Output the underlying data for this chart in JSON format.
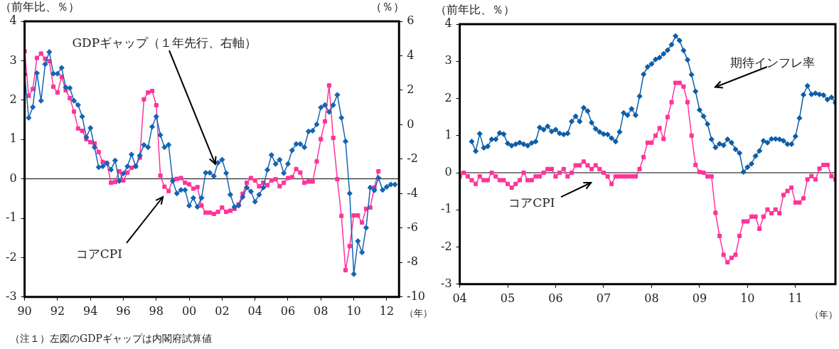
{
  "chart_data": [
    {
      "type": "line",
      "ylabel": "（前年比、％）",
      "y2label": "（％）",
      "xlabel": "（年）",
      "annotations": [
        "（注１）左図のGDPギャップは内閣府試算値"
      ],
      "x": [
        1990,
        1990.25,
        1990.5,
        1990.75,
        1991,
        1991.25,
        1991.5,
        1991.75,
        1992,
        1992.25,
        1992.5,
        1992.75,
        1993,
        1993.25,
        1993.5,
        1993.75,
        1994,
        1994.25,
        1994.5,
        1994.75,
        1995,
        1995.25,
        1995.5,
        1995.75,
        1996,
        1996.25,
        1996.5,
        1996.75,
        1997,
        1997.25,
        1997.5,
        1997.75,
        1998,
        1998.25,
        1998.5,
        1998.75,
        1999,
        1999.25,
        1999.5,
        1999.75,
        2000,
        2000.25,
        2000.5,
        2000.75,
        2001,
        2001.25,
        2001.5,
        2001.75,
        2002,
        2002.25,
        2002.5,
        2002.75,
        2003,
        2003.25,
        2003.5,
        2003.75,
        2004,
        2004.25,
        2004.5,
        2004.75,
        2005,
        2005.25,
        2005.5,
        2005.75,
        2006,
        2006.25,
        2006.5,
        2006.75,
        2007,
        2007.25,
        2007.5,
        2007.75,
        2008,
        2008.25,
        2008.5,
        2008.75,
        2009,
        2009.25,
        2009.5,
        2009.75,
        2010,
        2010.25,
        2010.5,
        2010.75,
        2011,
        2011.25,
        2011.5,
        2011.75,
        2012,
        2012.25,
        2012.5
      ],
      "series": [
        {
          "name": "コアCPI",
          "color": "#ff3399",
          "marker": "square",
          "values": [
            3.24,
            2.11,
            2.28,
            3.07,
            3.18,
            3.05,
            2.99,
            2.34,
            2.19,
            2.59,
            2.25,
            2.05,
            1.71,
            1.28,
            1.22,
            1.01,
            0.93,
            0.9,
            0.68,
            0.43,
            0.4,
            -0.1,
            -0.08,
            0.19,
            -0.04,
            0.16,
            0.28,
            0.32,
            0.54,
            2.02,
            2.19,
            2.23,
            1.87,
            0.08,
            -0.2,
            -0.31,
            -0.02,
            0.0,
            0.02,
            -0.1,
            -0.14,
            -0.25,
            -0.21,
            -0.68,
            -0.86,
            -0.86,
            -0.89,
            -0.84,
            -0.73,
            -0.84,
            -0.81,
            -0.76,
            -0.65,
            -0.38,
            -0.1,
            0.02,
            -0.04,
            -0.19,
            -0.1,
            -0.16,
            -0.04,
            -0.01,
            -0.19,
            -0.1,
            0.02,
            0.04,
            0.25,
            0.16,
            -0.1,
            -0.07,
            -0.07,
            0.44,
            1.01,
            1.46,
            2.37,
            1.04,
            -0.01,
            -0.94,
            -2.32,
            -1.71,
            -0.93,
            -0.93,
            -1.11,
            -0.76,
            -0.73,
            -0.22,
            0.19,
            null,
            null,
            null,
            null
          ]
        },
        {
          "name": "GDPギャップ（１年先行、右軸）",
          "color": "#1464b4",
          "marker": "diamond",
          "axis": "y2",
          "values": [
            2.92,
            0.4,
            1.02,
            2.99,
            1.39,
            3.51,
            4.22,
            2.96,
            2.96,
            3.3,
            2.17,
            2.13,
            1.39,
            1.14,
            0.47,
            -0.73,
            -0.19,
            -1.31,
            -2.47,
            -2.42,
            -2.24,
            -2.61,
            -2.08,
            -3.27,
            -2.83,
            -2.42,
            -1.73,
            -2.42,
            -1.79,
            -1.17,
            -1.31,
            -0.12,
            0.47,
            -0.6,
            -1.31,
            -1.17,
            -3.27,
            -3.99,
            -3.79,
            -3.79,
            -4.7,
            -4.25,
            -4.77,
            -4.25,
            -2.79,
            -2.79,
            -2.99,
            -2.21,
            -2.03,
            -2.81,
            -4.06,
            -4.77,
            -4.7,
            -4.2,
            -3.65,
            -3.88,
            -4.47,
            -4.06,
            -3.65,
            -2.62,
            -1.76,
            -2.28,
            -2.03,
            -2.81,
            -2.28,
            -1.49,
            -1.12,
            -1.12,
            -1.31,
            -0.39,
            -0.35,
            0.02,
            1.0,
            1.14,
            0.74,
            1.14,
            1.73,
            0.4,
            -0.97,
            -3.99,
            -8.67,
            -6.76,
            -7.41,
            -5.98,
            -3.65,
            -3.81,
            -3.09,
            -3.79,
            -3.61,
            -3.47,
            -3.47
          ]
        }
      ],
      "xlim": [
        1990,
        2012.75
      ],
      "xticks": [
        {
          "value": 1990,
          "label": "90"
        },
        {
          "value": 1992,
          "label": "92"
        },
        {
          "value": 1994,
          "label": "94"
        },
        {
          "value": 1996,
          "label": "96"
        },
        {
          "value": 1998,
          "label": "98"
        },
        {
          "value": 2000,
          "label": "00"
        },
        {
          "value": 2002,
          "label": "02"
        },
        {
          "value": 2004,
          "label": "04"
        },
        {
          "value": 2006,
          "label": "06"
        },
        {
          "value": 2008,
          "label": "08"
        },
        {
          "value": 2010,
          "label": "10"
        },
        {
          "value": 2012,
          "label": "12"
        }
      ],
      "ylim": [
        -3,
        4
      ],
      "yticks": [
        -3,
        -2,
        -1,
        0,
        1,
        2,
        3,
        4
      ],
      "y2lim": [
        -10,
        6
      ],
      "y2ticks": [
        -10,
        -8,
        -6,
        -4,
        -2,
        0,
        2,
        4,
        6
      ],
      "ref_lines": [
        {
          "axis": "y",
          "value": 0
        }
      ]
    },
    {
      "type": "line",
      "ylabel": "（前年比、％）",
      "xlabel": "（年）",
      "x": [
        "2004-01",
        "2004-02",
        "2004-03",
        "2004-04",
        "2004-05",
        "2004-06",
        "2004-07",
        "2004-08",
        "2004-09",
        "2004-10",
        "2004-11",
        "2004-12",
        "2005-01",
        "2005-02",
        "2005-03",
        "2005-04",
        "2005-05",
        "2005-06",
        "2005-07",
        "2005-08",
        "2005-09",
        "2005-10",
        "2005-11",
        "2005-12",
        "2006-01",
        "2006-02",
        "2006-03",
        "2006-04",
        "2006-05",
        "2006-06",
        "2006-07",
        "2006-08",
        "2006-09",
        "2006-10",
        "2006-11",
        "2006-12",
        "2007-01",
        "2007-02",
        "2007-03",
        "2007-04",
        "2007-05",
        "2007-06",
        "2007-07",
        "2007-08",
        "2007-09",
        "2007-10",
        "2007-11",
        "2007-12",
        "2008-01",
        "2008-02",
        "2008-03",
        "2008-04",
        "2008-05",
        "2008-06",
        "2008-07",
        "2008-08",
        "2008-09",
        "2008-10",
        "2008-11",
        "2008-12",
        "2009-01",
        "2009-02",
        "2009-03",
        "2009-04",
        "2009-05",
        "2009-06",
        "2009-07",
        "2009-08",
        "2009-09",
        "2009-10",
        "2009-11",
        "2009-12",
        "2010-01",
        "2010-02",
        "2010-03",
        "2010-04",
        "2010-05",
        "2010-06",
        "2010-07",
        "2010-08",
        "2010-09",
        "2010-10",
        "2010-11",
        "2010-12",
        "2011-01",
        "2011-02",
        "2011-03",
        "2011-04",
        "2011-05",
        "2011-06",
        "2011-07",
        "2011-08",
        "2011-09",
        "2011-10",
        "2011-11"
      ],
      "series": [
        {
          "name": "期待インフレ率",
          "color": "#0b5ea8",
          "marker": "diamond",
          "values": [
            null,
            null,
            null,
            0.84,
            0.58,
            1.05,
            0.67,
            0.71,
            0.9,
            0.9,
            1.07,
            1.04,
            0.79,
            0.73,
            0.77,
            0.81,
            0.77,
            0.73,
            0.8,
            0.84,
            1.22,
            1.16,
            1.25,
            1.11,
            1.16,
            1.06,
            1.03,
            1.06,
            1.38,
            1.52,
            1.38,
            1.75,
            1.66,
            1.35,
            1.18,
            1.1,
            1.04,
            1.03,
            0.93,
            0.84,
            1.1,
            1.61,
            1.55,
            1.72,
            1.55,
            2.06,
            2.65,
            2.85,
            2.93,
            3.05,
            3.1,
            3.2,
            3.3,
            3.45,
            3.68,
            3.56,
            3.29,
            3.04,
            2.64,
            2.19,
            1.69,
            1.52,
            1.31,
            0.9,
            0.68,
            0.78,
            0.74,
            0.9,
            0.81,
            0.63,
            0.53,
            0.02,
            0.15,
            0.24,
            0.45,
            0.59,
            0.86,
            0.81,
            0.91,
            0.91,
            0.9,
            0.86,
            0.77,
            0.77,
            0.98,
            1.47,
            2.1,
            2.34,
            2.11,
            2.14,
            2.11,
            2.09,
            1.97,
            2.03,
            1.88
          ]
        },
        {
          "name": "コアCPI",
          "color": "#ff3399",
          "marker": "square",
          "values": [
            -0.1,
            0,
            -0.1,
            -0.2,
            -0.3,
            -0.1,
            -0.2,
            -0.2,
            0,
            -0.1,
            -0.2,
            -0.2,
            -0.3,
            -0.4,
            -0.3,
            -0.2,
            0,
            -0.2,
            -0.2,
            -0.1,
            -0.1,
            0,
            0.1,
            0.1,
            -0.1,
            0,
            0.1,
            -0.1,
            0,
            0.2,
            0.2,
            0.3,
            0.2,
            0.1,
            0.2,
            0.1,
            0,
            -0.1,
            -0.3,
            -0.1,
            -0.1,
            -0.1,
            -0.1,
            -0.1,
            -0.1,
            0.1,
            0.42,
            0.81,
            0.81,
            1.0,
            1.2,
            0.91,
            1.5,
            1.9,
            2.42,
            2.42,
            2.32,
            1.9,
            1.0,
            0.21,
            0.02,
            0.0,
            -0.1,
            -0.1,
            -1.08,
            -1.7,
            -2.21,
            -2.41,
            -2.29,
            -2.21,
            -1.7,
            -1.31,
            -1.31,
            -1.18,
            -1.18,
            -1.51,
            -1.18,
            -0.99,
            -1.09,
            -0.99,
            -1.09,
            -0.6,
            -0.49,
            -0.4,
            -0.8,
            -0.8,
            -0.69,
            -0.18,
            -0.09,
            -0.18,
            0.11,
            0.21,
            0.21,
            -0.09,
            -0.18
          ]
        }
      ],
      "xlim": [
        "2004-01",
        "2011-11"
      ],
      "xticks": [
        {
          "value": "2004-01",
          "label": "04"
        },
        {
          "value": "2005-01",
          "label": "05"
        },
        {
          "value": "2006-01",
          "label": "06"
        },
        {
          "value": "2007-01",
          "label": "07"
        },
        {
          "value": "2008-01",
          "label": "08"
        },
        {
          "value": "2009-01",
          "label": "09"
        },
        {
          "value": "2010-01",
          "label": "10"
        },
        {
          "value": "2011-01",
          "label": "11"
        }
      ],
      "ylim": [
        -3,
        4
      ],
      "yticks": [
        -3,
        -2,
        -1,
        0,
        1,
        2,
        3,
        4
      ],
      "ref_lines": [
        {
          "axis": "y",
          "value": 0
        }
      ]
    }
  ]
}
